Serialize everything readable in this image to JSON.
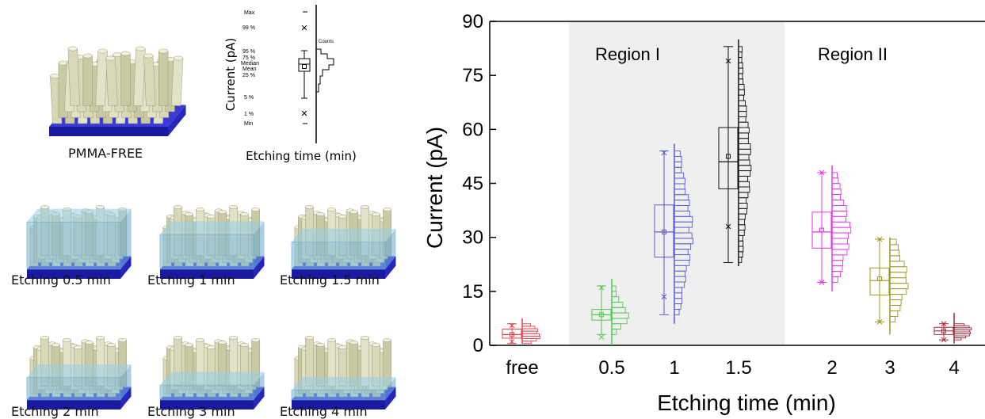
{
  "left_panel": {
    "pillars": [
      {
        "caption": "PMMA-FREE",
        "fill_level": 0
      },
      {
        "caption": "Etching 0.5 min",
        "fill_level": 0.95
      },
      {
        "caption": "Etching 1 min",
        "fill_level": 0.7
      },
      {
        "caption": "Etching 1.5 min",
        "fill_level": 0.55
      },
      {
        "caption": "Etching 2 min",
        "fill_level": 0.45
      },
      {
        "caption": "Etching 3 min",
        "fill_level": 0.3
      },
      {
        "caption": "Etching 4 min",
        "fill_level": 0.2
      }
    ],
    "legend": {
      "ylabel": "Current (pA)",
      "xlabel": "Etching time (min)",
      "counts_label": "Counts",
      "stat_labels": [
        "Max",
        "99 %",
        "95 %",
        "75 %",
        "Median",
        "Mean",
        "25 %",
        "5 %",
        "1 %",
        "Min"
      ]
    }
  },
  "chart_data": {
    "type": "box-histogram",
    "xlabel": "Etching time (min)",
    "ylabel": "Current (pA)",
    "ylim": [
      0,
      90
    ],
    "yticks": [
      0,
      15,
      30,
      45,
      60,
      75,
      90
    ],
    "categories": [
      "free",
      "0.5",
      "1",
      "1.5",
      "2",
      "3",
      "4"
    ],
    "regions": [
      {
        "label": "Region I",
        "categories": [
          "0.5",
          "1",
          "1.5"
        ],
        "shaded": true
      },
      {
        "label": "Region II",
        "categories": [
          "2",
          "3",
          "4"
        ],
        "shaded": false
      }
    ],
    "series": [
      {
        "category": "free",
        "color": "#e8404a",
        "q1": 2,
        "median": 3,
        "q3": 4.5,
        "mean": 3,
        "whisker_low": 0.5,
        "whisker_high": 6,
        "p1": 1,
        "p99": 5.5,
        "min": 0.5,
        "max": 7.5
      },
      {
        "category": "0.5",
        "color": "#4ec94e",
        "q1": 7,
        "median": 8.5,
        "q3": 10,
        "mean": 8.5,
        "whisker_low": 3,
        "whisker_high": 16.5,
        "p1": 2.3,
        "p99": 16,
        "min": 0,
        "max": 18.5
      },
      {
        "category": "1",
        "color": "#5b5bd6",
        "q1": 24.5,
        "median": 31.5,
        "q3": 39,
        "mean": 31.5,
        "whisker_low": 8.5,
        "whisker_high": 54,
        "p1": 13.5,
        "p99": 53.5,
        "min": 6,
        "max": 56
      },
      {
        "category": "1.5",
        "color": "#111111",
        "q1": 43.5,
        "median": 51,
        "q3": 60.5,
        "mean": 52.5,
        "whisker_low": 23,
        "whisker_high": 83,
        "p1": 33,
        "p99": 79,
        "min": 22,
        "max": 85
      },
      {
        "category": "2",
        "color": "#e636e6",
        "q1": 27,
        "median": 31.5,
        "q3": 37,
        "mean": 32,
        "whisker_low": 17.5,
        "whisker_high": 48,
        "p1": 17.5,
        "p99": 48,
        "min": 15,
        "max": 50
      },
      {
        "category": "3",
        "color": "#9a9a22",
        "q1": 14,
        "median": 18,
        "q3": 21.5,
        "mean": 18.5,
        "whisker_low": 6.5,
        "whisker_high": 29.5,
        "p1": 6.5,
        "p99": 29.5,
        "min": 3,
        "max": 30
      },
      {
        "category": "4",
        "color": "#a5283a",
        "q1": 3,
        "median": 4,
        "q3": 5,
        "mean": 4,
        "whisker_low": 1.5,
        "whisker_high": 6,
        "p1": 1.5,
        "p99": 6,
        "min": 0.5,
        "max": 9
      }
    ]
  }
}
